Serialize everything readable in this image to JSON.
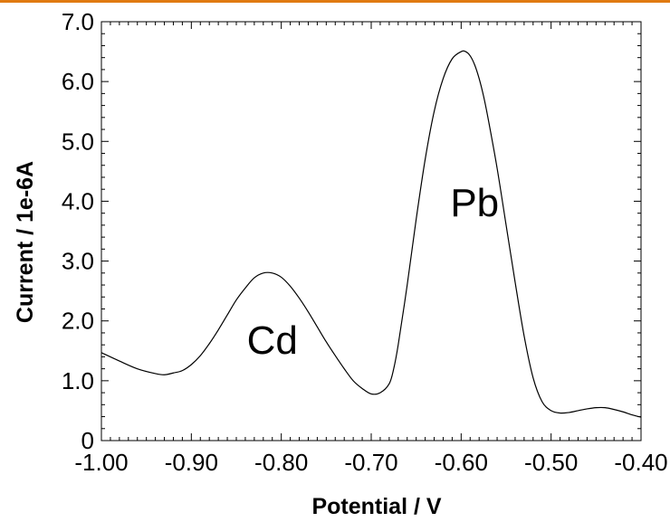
{
  "chart_data": {
    "type": "line",
    "title": "",
    "xlabel": "Potential / V",
    "ylabel": "Current / 1e-6A",
    "xlim": [
      -1.0,
      -0.4
    ],
    "ylim": [
      0,
      7.0
    ],
    "x_ticks": [
      -1.0,
      -0.9,
      -0.8,
      -0.7,
      -0.6,
      -0.5,
      -0.4
    ],
    "x_tick_labels": [
      "-1.00",
      "-0.90",
      "-0.80",
      "-0.70",
      "-0.60",
      "-0.50",
      "-0.40"
    ],
    "y_ticks": [
      0,
      1,
      2,
      3,
      4,
      5,
      6,
      7
    ],
    "y_tick_labels": [
      "0",
      "1.0",
      "2.0",
      "3.0",
      "4.0",
      "5.0",
      "6.0",
      "7.0"
    ],
    "grid": false,
    "legend": "none",
    "line_color": "#000000",
    "series": [
      {
        "x": [
          -1.0,
          -0.98,
          -0.96,
          -0.94,
          -0.93,
          -0.92,
          -0.91,
          -0.9,
          -0.89,
          -0.88,
          -0.87,
          -0.86,
          -0.85,
          -0.84,
          -0.83,
          -0.82,
          -0.81,
          -0.8,
          -0.79,
          -0.78,
          -0.77,
          -0.76,
          -0.75,
          -0.74,
          -0.73,
          -0.72,
          -0.71,
          -0.7,
          -0.69,
          -0.68,
          -0.675,
          -0.67,
          -0.66,
          -0.65,
          -0.64,
          -0.63,
          -0.62,
          -0.61,
          -0.6,
          -0.595,
          -0.59,
          -0.585,
          -0.58,
          -0.575,
          -0.57,
          -0.56,
          -0.55,
          -0.54,
          -0.53,
          -0.52,
          -0.51,
          -0.5,
          -0.49,
          -0.48,
          -0.47,
          -0.46,
          -0.45,
          -0.44,
          -0.43,
          -0.42,
          -0.41,
          -0.4
        ],
        "y": [
          1.47,
          1.33,
          1.2,
          1.12,
          1.1,
          1.13,
          1.17,
          1.27,
          1.42,
          1.62,
          1.85,
          2.1,
          2.35,
          2.55,
          2.72,
          2.8,
          2.8,
          2.73,
          2.58,
          2.38,
          2.15,
          1.9,
          1.65,
          1.42,
          1.2,
          1.0,
          0.87,
          0.78,
          0.8,
          0.95,
          1.2,
          1.6,
          2.6,
          3.7,
          4.7,
          5.5,
          6.05,
          6.38,
          6.5,
          6.5,
          6.43,
          6.28,
          6.05,
          5.75,
          5.38,
          4.55,
          3.6,
          2.65,
          1.75,
          1.05,
          0.65,
          0.5,
          0.46,
          0.47,
          0.5,
          0.53,
          0.55,
          0.55,
          0.52,
          0.48,
          0.43,
          0.39
        ]
      }
    ],
    "annotations": [
      {
        "text": "Cd",
        "x": -0.81,
        "y": 1.45
      },
      {
        "text": "Pb",
        "x": -0.585,
        "y": 3.75
      }
    ]
  }
}
